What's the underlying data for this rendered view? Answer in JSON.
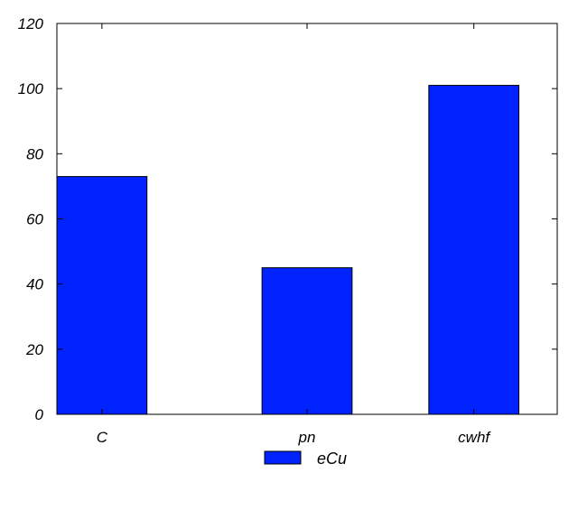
{
  "chart_data": {
    "type": "bar",
    "categories": [
      "C",
      "pn",
      "cwhf"
    ],
    "series": [
      {
        "name": "eCu",
        "values": [
          73,
          45,
          101
        ]
      }
    ],
    "ylim": [
      0,
      120
    ],
    "yticks": [
      0,
      20,
      40,
      60,
      80,
      100,
      120
    ],
    "ytick_labels": [
      "0",
      "20",
      "40",
      "60",
      "80",
      "100",
      "120"
    ],
    "title": "",
    "xlabel": "",
    "ylabel": "",
    "grid": false,
    "legend_position": "bottom-center",
    "colors": {
      "bar_fill": "#0022ff",
      "bar_stroke": "#000000",
      "axis": "#000000"
    }
  }
}
